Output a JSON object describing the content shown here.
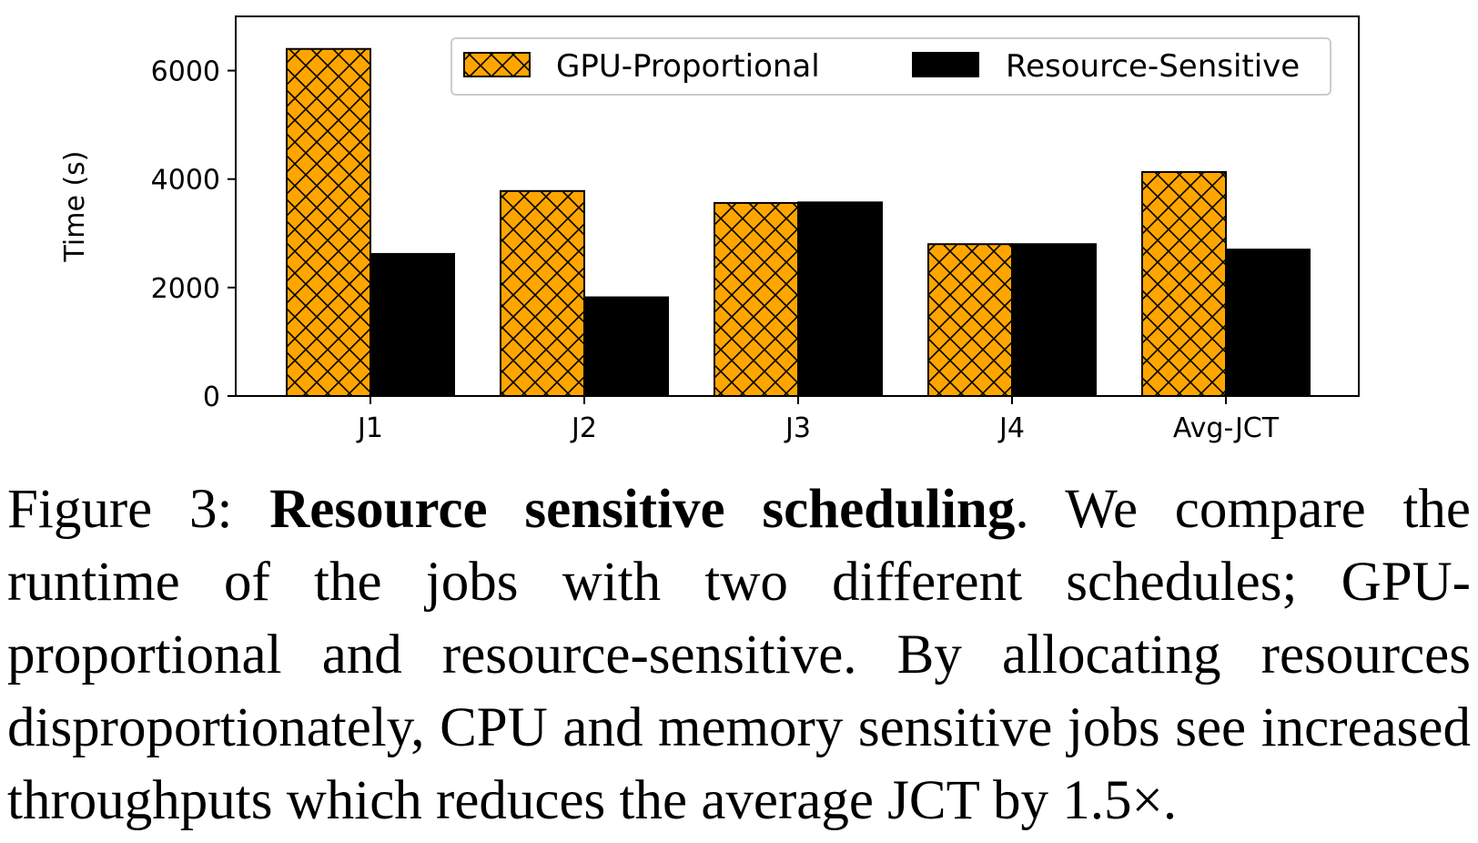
{
  "chart_data": {
    "type": "bar",
    "categories": [
      "J1",
      "J2",
      "J3",
      "J4",
      "Avg-JCT"
    ],
    "series": [
      {
        "name": "GPU-Proportional",
        "values": [
          6400,
          3780,
          3560,
          2800,
          4130
        ],
        "color": "#FFA500",
        "hatch": "cross"
      },
      {
        "name": "Resource-Sensitive",
        "values": [
          2620,
          1820,
          3570,
          2800,
          2700
        ],
        "color": "#000000",
        "hatch": "none"
      }
    ],
    "title": "",
    "xlabel": "",
    "ylabel": "Time (s)",
    "ylim": [
      0,
      7000
    ],
    "yticks": [
      0,
      2000,
      4000,
      6000
    ],
    "ytick_labels": [
      "0",
      "2000",
      "4000",
      "6000"
    ],
    "legend": "top-right",
    "grid": false
  },
  "caption": {
    "prefix": "Figure 3: ",
    "bold": "Resource sensitive scheduling",
    "rest": ". We compare the runtime of the jobs with two different schedules; GPU-proportional and resource-sensitive. By allocating resources disproportionately, CPU and memory sensitive jobs see increased throughputs which reduces the average JCT by 1.5×."
  }
}
